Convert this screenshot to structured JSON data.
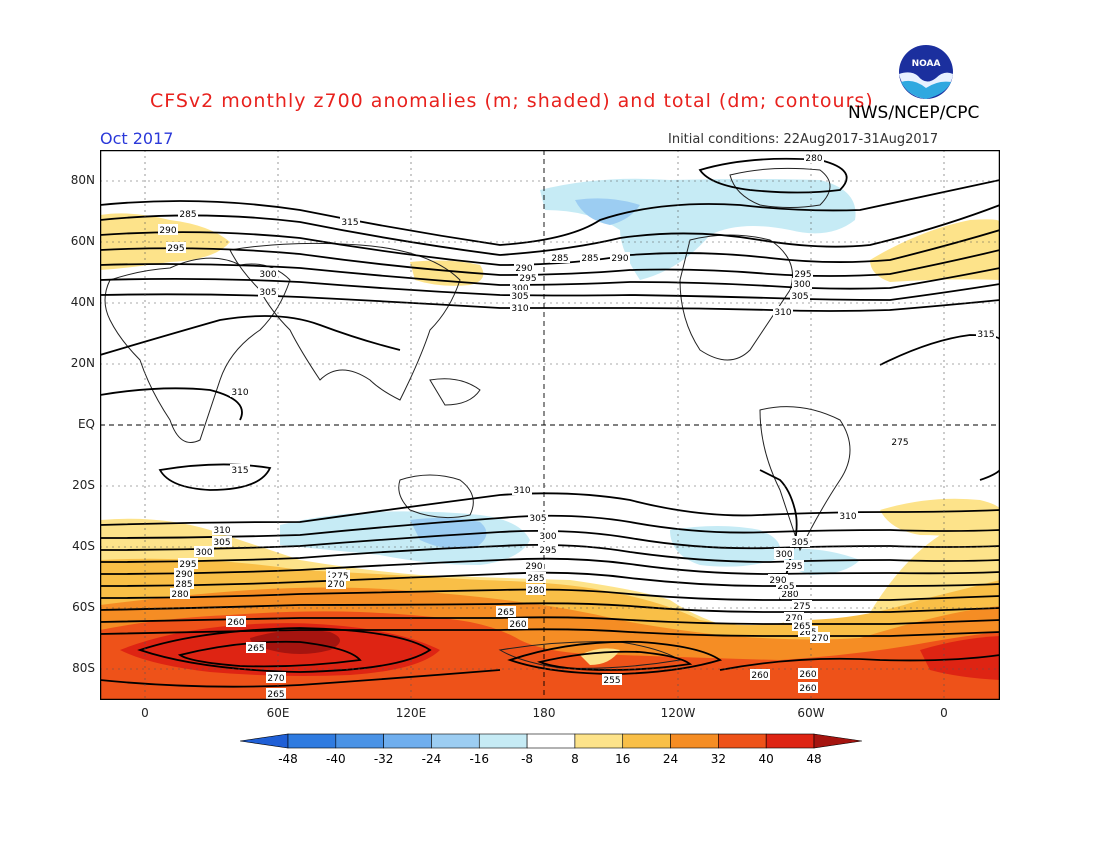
{
  "header": {
    "title": "CFSv2 monthly z700 anomalies (m; shaded) and total (dm; contours)",
    "agency": "NWS/NCEP/CPC",
    "period": "Oct 2017",
    "initial_conditions": "Initial conditions: 22Aug2017-31Aug2017",
    "logo_icon": "noaa-logo",
    "logo_text": "NOAA"
  },
  "map": {
    "lat_labels": [
      "80N",
      "60N",
      "40N",
      "20N",
      "EQ",
      "20S",
      "40S",
      "60S",
      "80S"
    ],
    "lon_labels": [
      "0",
      "60E",
      "120E",
      "180",
      "120W",
      "60W",
      "0"
    ],
    "contour_labels": [
      "280",
      "285",
      "290",
      "295",
      "300",
      "305",
      "310",
      "315",
      "315",
      "315",
      "285",
      "290",
      "295",
      "300",
      "305",
      "310",
      "290",
      "285",
      "295",
      "300",
      "305",
      "310",
      "265",
      "260",
      "255",
      "260",
      "265",
      "270",
      "275",
      "280",
      "285",
      "290",
      "295",
      "300",
      "305",
      "310",
      "260",
      "265",
      "270",
      "275",
      "280",
      "265",
      "260",
      "310",
      "305",
      "300",
      "295",
      "290",
      "285",
      "280",
      "275",
      "270",
      "260",
      "265",
      "260",
      "310",
      "305",
      "300",
      "295",
      "290",
      "285",
      "280",
      "275",
      "270",
      "265"
    ]
  },
  "colorbar": {
    "ticks": [
      "-48",
      "-40",
      "-32",
      "-24",
      "-16",
      "-8",
      "8",
      "16",
      "24",
      "32",
      "40",
      "48"
    ],
    "colors": [
      "#1f5fd6",
      "#2f7be0",
      "#4a93e6",
      "#6faeee",
      "#9ccdf2",
      "#c6ebf5",
      "#ffffff",
      "#fde38a",
      "#f9bf47",
      "#f58d24",
      "#ee5219",
      "#de2413",
      "#a5140f"
    ]
  }
}
